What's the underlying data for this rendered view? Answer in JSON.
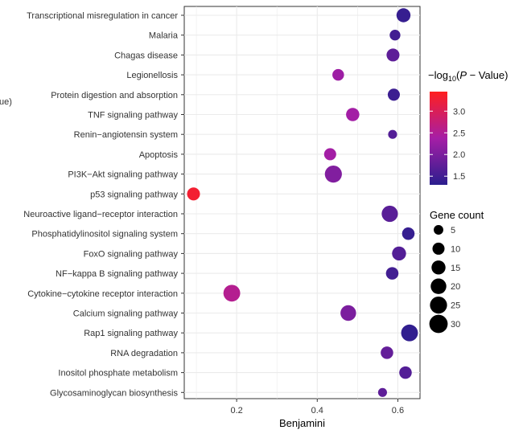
{
  "chart_data": {
    "type": "scatter",
    "xlabel": "Benjamini",
    "xlim": [
      0.07,
      0.655
    ],
    "xticks": [
      0.2,
      0.4,
      0.6
    ],
    "xtick_labels": [
      "0.2",
      "0.4",
      "0.6"
    ],
    "grid": true,
    "legend_placement": "right",
    "clipped_left_text": "ue)",
    "categories": [
      "Transcriptional misregulation in cancer",
      "Malaria",
      "Chagas disease",
      "Legionellosis",
      "Protein digestion and absorption",
      "TNF signaling pathway",
      "Renin−angiotensin system",
      "Apoptosis",
      "PI3K−Akt signaling pathway",
      "p53 signaling pathway",
      "Neuroactive ligand−receptor interaction",
      "Phosphatidylinositol signaling system",
      "FoxO signaling pathway",
      "NF−kappa B signaling pathway",
      "Cytokine−cytokine receptor interaction",
      "Calcium signaling pathway",
      "Rap1 signaling pathway",
      "RNA degradation",
      "Inositol phosphate metabolism",
      "Glycosaminoglycan biosynthesis"
    ],
    "points": [
      {
        "x": 0.614,
        "count": 15,
        "neglog10p": 1.4
      },
      {
        "x": 0.593,
        "count": 7,
        "neglog10p": 1.5
      },
      {
        "x": 0.588,
        "count": 12,
        "neglog10p": 1.75
      },
      {
        "x": 0.452,
        "count": 9,
        "neglog10p": 2.3
      },
      {
        "x": 0.59,
        "count": 10,
        "neglog10p": 1.45
      },
      {
        "x": 0.488,
        "count": 13,
        "neglog10p": 2.35
      },
      {
        "x": 0.587,
        "count": 4,
        "neglog10p": 1.65
      },
      {
        "x": 0.432,
        "count": 10,
        "neglog10p": 2.35
      },
      {
        "x": 0.44,
        "count": 25,
        "neglog10p": 2.05
      },
      {
        "x": 0.093,
        "count": 12,
        "neglog10p": 3.3
      },
      {
        "x": 0.58,
        "count": 22,
        "neglog10p": 1.7
      },
      {
        "x": 0.626,
        "count": 11,
        "neglog10p": 1.4
      },
      {
        "x": 0.603,
        "count": 15,
        "neglog10p": 1.65
      },
      {
        "x": 0.586,
        "count": 11,
        "neglog10p": 1.5
      },
      {
        "x": 0.188,
        "count": 24,
        "neglog10p": 2.55
      },
      {
        "x": 0.477,
        "count": 20,
        "neglog10p": 2.0
      },
      {
        "x": 0.629,
        "count": 24,
        "neglog10p": 1.35
      },
      {
        "x": 0.573,
        "count": 11,
        "neglog10p": 1.8
      },
      {
        "x": 0.619,
        "count": 11,
        "neglog10p": 1.65
      },
      {
        "x": 0.562,
        "count": 4,
        "neglog10p": 1.75
      }
    ],
    "color_legend": {
      "title_prefix": "−log",
      "title_sub": "10",
      "title_open": "(",
      "title_italic": "P",
      "title_rest": " − Value)",
      "ticks": [
        3.0,
        2.5,
        2.0,
        1.5
      ],
      "tick_labels": [
        "3.0",
        "2.5",
        "2.0",
        "1.5"
      ],
      "range": [
        1.3,
        3.45
      ],
      "low_color": "#2b1e8e",
      "high_color": "#ff1f1f"
    },
    "size_legend": {
      "title": "Gene count",
      "values": [
        5,
        10,
        15,
        20,
        25,
        30
      ],
      "labels": [
        "5",
        "10",
        "15",
        "20",
        "25",
        "30"
      ]
    }
  }
}
